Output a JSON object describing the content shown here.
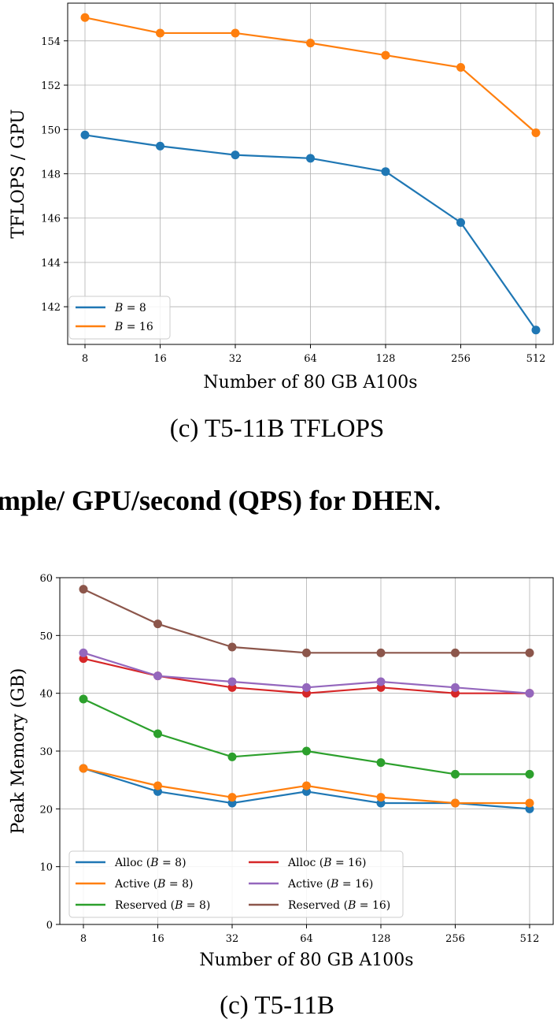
{
  "fragment_heading": "mple/ GPU/second (QPS) for DHEN.",
  "chart_data": [
    {
      "type": "line",
      "caption": "(c) T5-11B TFLOPS",
      "xlabel": "Number of 80 GB A100s",
      "ylabel": "TFLOPS / GPU",
      "categories": [
        "8",
        "16",
        "32",
        "64",
        "128",
        "256",
        "512"
      ],
      "yticks": [
        142,
        144,
        146,
        148,
        150,
        152,
        154
      ],
      "ylim": [
        140.3,
        155.7
      ],
      "grid": true,
      "legend_placement": "lower-left",
      "series": [
        {
          "name": "B = 8",
          "color": "#1f77b4",
          "values": [
            149.75,
            149.25,
            148.85,
            148.7,
            148.1,
            145.8,
            140.95
          ]
        },
        {
          "name": "B = 16",
          "color": "#ff7f0e",
          "values": [
            155.05,
            154.35,
            154.35,
            153.9,
            153.35,
            152.8,
            149.85
          ]
        }
      ]
    },
    {
      "type": "line",
      "caption": "(c) T5-11B",
      "xlabel": "Number of 80 GB A100s",
      "ylabel": "Peak Memory (GB)",
      "categories": [
        "8",
        "16",
        "32",
        "64",
        "128",
        "256",
        "512"
      ],
      "yticks": [
        0,
        10,
        20,
        30,
        40,
        50,
        60
      ],
      "ylim": [
        0,
        60
      ],
      "grid": true,
      "legend_placement": "lower-left",
      "series": [
        {
          "name": "Alloc (B = 8)",
          "color": "#1f77b4",
          "values": [
            27,
            23,
            21,
            23,
            21,
            21,
            20
          ]
        },
        {
          "name": "Active (B = 8)",
          "color": "#ff7f0e",
          "values": [
            27,
            24,
            22,
            24,
            22,
            21,
            21
          ]
        },
        {
          "name": "Reserved (B = 8)",
          "color": "#2ca02c",
          "values": [
            39,
            33,
            29,
            30,
            28,
            26,
            26
          ]
        },
        {
          "name": "Alloc (B = 16)",
          "color": "#d62728",
          "values": [
            46,
            43,
            41,
            40,
            41,
            40,
            40
          ]
        },
        {
          "name": "Active (B = 16)",
          "color": "#9467bd",
          "values": [
            47,
            43,
            42,
            41,
            42,
            41,
            40
          ]
        },
        {
          "name": "Reserved (B = 16)",
          "color": "#8c564b",
          "values": [
            58,
            52,
            48,
            47,
            47,
            47,
            47
          ]
        }
      ]
    }
  ]
}
